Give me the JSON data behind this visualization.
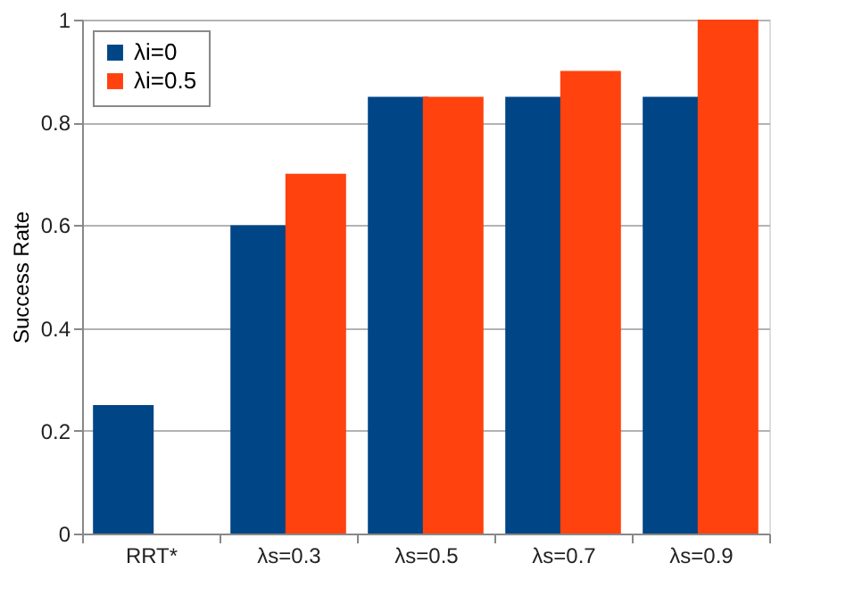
{
  "chart_data": {
    "type": "bar",
    "ylabel": "Success Rate",
    "categories": [
      "RRT*",
      "λs=0.3",
      "λs=0.5",
      "λs=0.7",
      "λs=0.9"
    ],
    "series": [
      {
        "name": "λi=0",
        "color": "#004586",
        "values": [
          0.25,
          0.6,
          0.85,
          0.85,
          0.85
        ]
      },
      {
        "name": "λi=0.5",
        "color": "#ff420e",
        "values": [
          null,
          0.7,
          0.85,
          0.9,
          1.0
        ]
      }
    ],
    "ylim": [
      0,
      1
    ],
    "yticks": [
      0,
      0.2,
      0.4,
      0.6,
      0.8,
      1
    ],
    "grid": "y",
    "legend": "top left"
  }
}
